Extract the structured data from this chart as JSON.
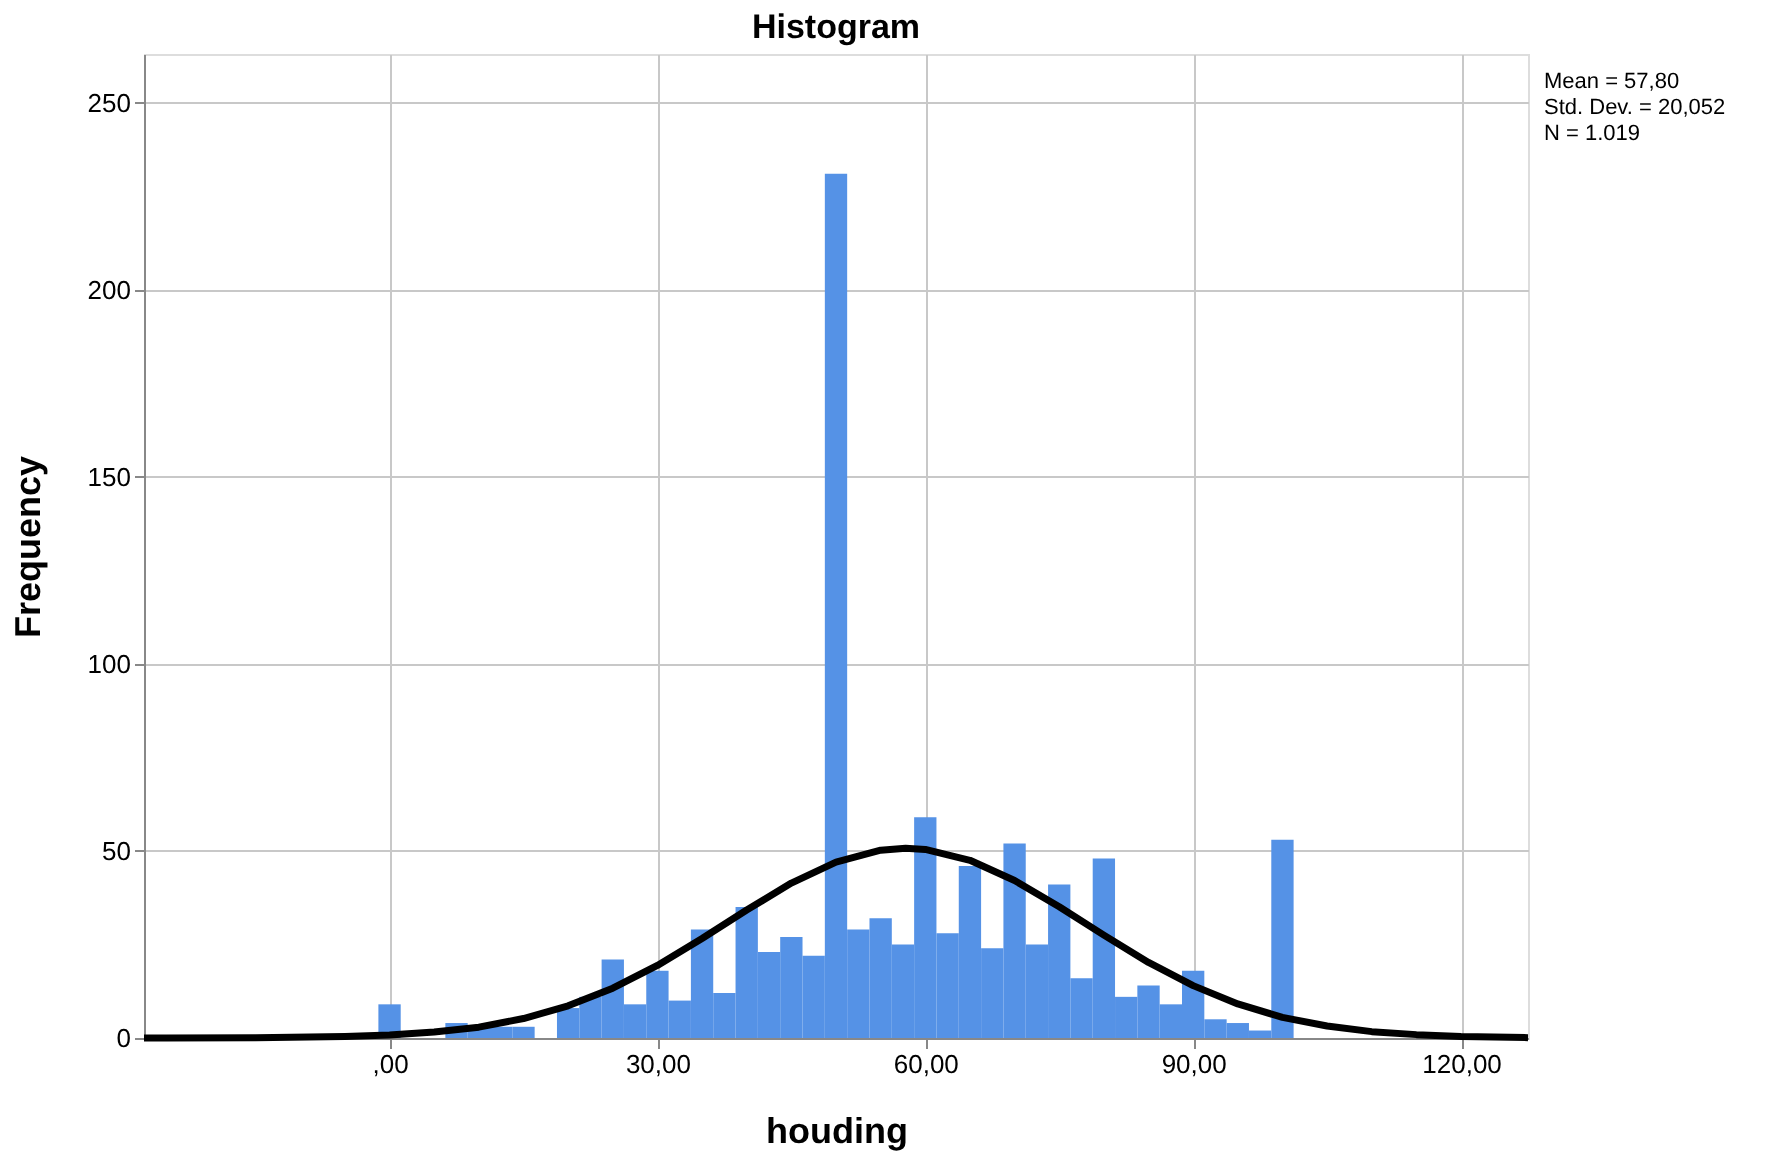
{
  "chart_data": {
    "type": "histogram",
    "title": "Histogram",
    "xlabel": "houding",
    "ylabel": "Frequency",
    "bins": [
      -1.25,
      1.25,
      3.75,
      6.25,
      8.75,
      11.25,
      13.75,
      16.25,
      18.75,
      21.25,
      23.75,
      26.25,
      28.75,
      31.25,
      33.75,
      36.25,
      38.75,
      41.25,
      43.75,
      46.25,
      48.75,
      51.25,
      53.75,
      56.25,
      58.75,
      61.25,
      63.75,
      66.25,
      68.75,
      71.25,
      73.75,
      76.25,
      78.75,
      81.25,
      83.75,
      86.25,
      88.75,
      91.25,
      93.75,
      96.25,
      98.75,
      101.25
    ],
    "values": [
      9,
      0,
      0,
      4,
      3,
      3,
      3,
      0,
      8,
      11,
      21,
      9,
      18,
      10,
      29,
      12,
      35,
      23,
      27,
      22,
      231,
      29,
      32,
      25,
      59,
      28,
      46,
      24,
      52,
      25,
      41,
      16,
      48,
      11,
      14,
      9,
      18,
      5,
      4,
      2,
      53
    ],
    "color": "#5592e6",
    "series": [
      {
        "type": "line",
        "color": "#000000",
        "x": [
          -27.5,
          -25,
          -15,
          -5,
          0,
          5,
          10,
          15,
          20,
          25,
          30,
          35,
          40,
          45,
          50,
          55,
          57.8,
          60,
          65,
          70,
          75,
          80,
          85,
          90,
          95,
          100,
          105,
          110,
          115,
          120,
          127.5
        ],
        "values": [
          0,
          0,
          0.1,
          0.4,
          0.8,
          1.6,
          2.9,
          5.2,
          8.6,
          13.3,
          19.4,
          26.6,
          34.2,
          41.4,
          47.0,
          50.2,
          50.7,
          50.4,
          47.5,
          42.1,
          35.1,
          27.5,
          20.2,
          14.0,
          9.1,
          5.5,
          3.2,
          1.7,
          0.9,
          0.4,
          0.1
        ]
      }
    ],
    "xlim": [
      -27.5,
      127.5
    ],
    "xticks": [
      {
        "value": 0,
        "label": ",00"
      },
      {
        "value": 30,
        "label": "30,00"
      },
      {
        "value": 60,
        "label": "60,00"
      },
      {
        "value": 90,
        "label": "90,00"
      },
      {
        "value": 120,
        "label": "120,00"
      }
    ],
    "ylim": [
      0,
      263
    ],
    "yticks": [
      0,
      50,
      100,
      150,
      200,
      250
    ],
    "grid": true,
    "annotations": [
      "Mean = 57,80",
      "Std. Dev. = 20,052",
      "N = 1.019"
    ]
  }
}
